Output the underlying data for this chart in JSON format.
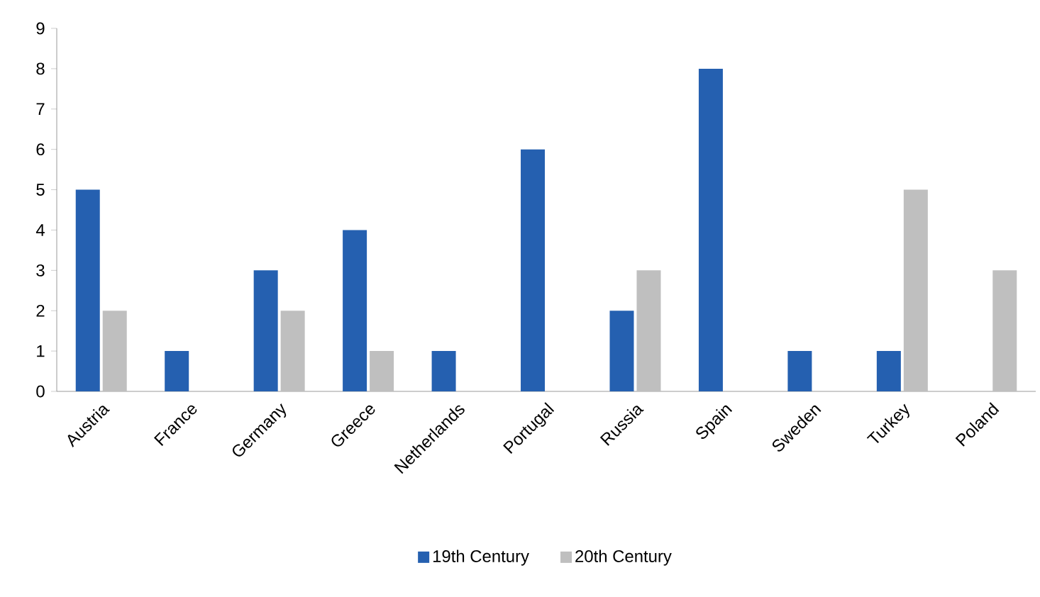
{
  "chart_data": {
    "type": "bar",
    "categories": [
      "Austria",
      "France",
      "Germany",
      "Greece",
      "Netherlands",
      "Portugal",
      "Russia",
      "Spain",
      "Sweden",
      "Turkey",
      "Poland"
    ],
    "series": [
      {
        "name": "19th Century",
        "color": "#2560b0",
        "values": [
          5,
          1,
          3,
          4,
          1,
          6,
          2,
          8,
          1,
          1,
          null
        ]
      },
      {
        "name": "20th Century",
        "color": "#bfbfbf",
        "values": [
          2,
          null,
          2,
          1,
          null,
          null,
          3,
          null,
          null,
          5,
          3
        ]
      }
    ],
    "ylim": [
      0,
      9
    ],
    "yticks": [
      0,
      1,
      2,
      3,
      4,
      5,
      6,
      7,
      8,
      9
    ],
    "grid": false,
    "legend": "bottom"
  }
}
